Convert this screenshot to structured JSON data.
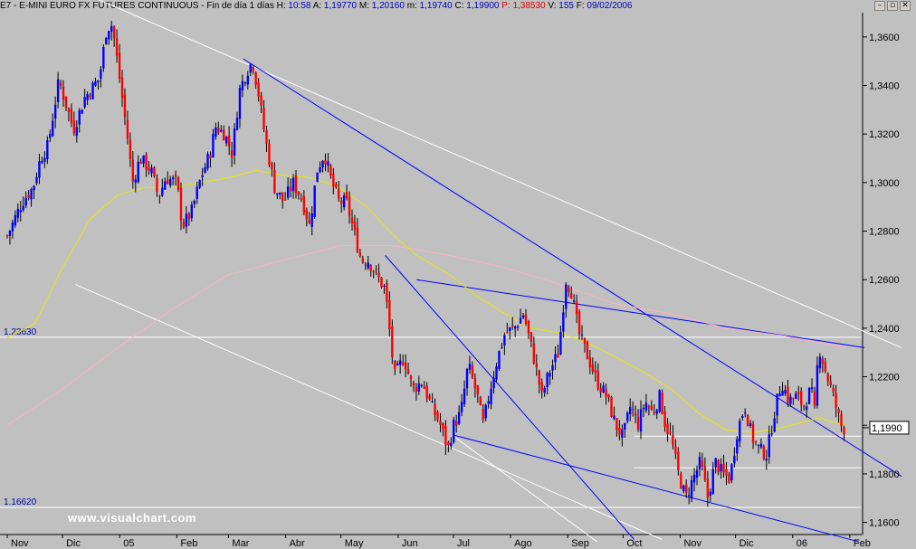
{
  "header": {
    "symbol": "E7",
    "name": "E-MINI EURO FX FUTURES CONTINUOUS",
    "timeframe": "Fin de día 1 días",
    "h_label": "H:",
    "h_value": "10:58",
    "a_label": "A:",
    "a_value": "1,19770",
    "m_label": "M:",
    "m_value": "1,20160",
    "mn_label": "m:",
    "mn_value": "1,19740",
    "c_label": "C:",
    "c_value": "1,19900",
    "p_label": "P:",
    "p_value": "1,38530",
    "v_label": "V:",
    "v_value": "155",
    "f_label": "F:",
    "f_value": "09/02/2006"
  },
  "window_buttons": {
    "minimize": "–",
    "restore": "▫",
    "close": "✕"
  },
  "watermark": "www.visualchart.com",
  "colors": {
    "background": "#c0c0c0",
    "up_candle": "#0000ff",
    "down_candle": "#ff0000",
    "ma_fast": "#e8e800",
    "ma_slow": "#ffb0c0",
    "trendline_blue": "#0000ff",
    "trendline_white": "#ffffff",
    "grid": "#ffffff"
  },
  "chart_data": {
    "type": "candlestick",
    "y_axis": {
      "min": 1.155,
      "max": 1.37,
      "ticks": [
        1.36,
        1.34,
        1.32,
        1.3,
        1.28,
        1.26,
        1.24,
        1.22,
        1.2,
        1.18,
        1.16
      ],
      "tick_labels": [
        "1,3600",
        "1,3400",
        "1,3200",
        "1,3000",
        "1,2800",
        "1,2600",
        "1,2400",
        "1,2200",
        "1,2000",
        "1,1800",
        "1,1600"
      ],
      "current_price": 1.199,
      "current_price_label": "1,1990"
    },
    "x_axis": {
      "labels": [
        "Nov",
        "Dic",
        "05",
        "Feb",
        "Mar",
        "Abr",
        "May",
        "Jun",
        "Jul",
        "Ago",
        "Sep",
        "Oct",
        "Nov",
        "Dic",
        "06",
        "Feb"
      ],
      "label_days": [
        0,
        30,
        61,
        92,
        120,
        151,
        181,
        212,
        242,
        273,
        304,
        334,
        365,
        395,
        426,
        457
      ]
    },
    "horizontal_levels": [
      {
        "value": 1.2363,
        "label": "1.23630"
      },
      {
        "value": 1.1662,
        "label": "1.16620"
      },
      {
        "value": 1.1955,
        "label": ""
      },
      {
        "value": 1.1825,
        "label": ""
      }
    ],
    "trendlines_blue": [
      {
        "from": [
          128,
          1.351
        ],
        "to": [
          485,
          1.179
        ]
      },
      {
        "from": [
          222,
          1.26
        ],
        "to": [
          465,
          1.232
        ]
      },
      {
        "from": [
          242,
          1.196
        ],
        "to": [
          462,
          1.152
        ]
      },
      {
        "from": [
          205,
          1.27
        ],
        "to": [
          340,
          1.153
        ]
      }
    ],
    "trendlines_white": [
      {
        "from": [
          40,
          1.3785
        ],
        "to": [
          485,
          1.232
        ]
      },
      {
        "from": [
          37,
          1.258
        ],
        "to": [
          355,
          1.153
        ]
      },
      {
        "from": [
          243,
          1.195
        ],
        "to": [
          320,
          1.152
        ]
      }
    ],
    "ohlc_path": [
      [
        0,
        1.278
      ],
      [
        8,
        1.292
      ],
      [
        14,
        1.298
      ],
      [
        18,
        1.31
      ],
      [
        22,
        1.315
      ],
      [
        28,
        1.342
      ],
      [
        32,
        1.332
      ],
      [
        36,
        1.322
      ],
      [
        42,
        1.335
      ],
      [
        50,
        1.343
      ],
      [
        54,
        1.364
      ],
      [
        57,
        1.365
      ],
      [
        60,
        1.348
      ],
      [
        65,
        1.32
      ],
      [
        68,
        1.3
      ],
      [
        72,
        1.31
      ],
      [
        78,
        1.305
      ],
      [
        82,
        1.294
      ],
      [
        86,
        1.302
      ],
      [
        92,
        1.3
      ],
      [
        95,
        1.282
      ],
      [
        100,
        1.288
      ],
      [
        105,
        1.302
      ],
      [
        110,
        1.312
      ],
      [
        113,
        1.323
      ],
      [
        118,
        1.32
      ],
      [
        122,
        1.312
      ],
      [
        126,
        1.338
      ],
      [
        130,
        1.346
      ],
      [
        133,
        1.35
      ],
      [
        136,
        1.338
      ],
      [
        140,
        1.318
      ],
      [
        145,
        1.298
      ],
      [
        150,
        1.292
      ],
      [
        155,
        1.3
      ],
      [
        160,
        1.293
      ],
      [
        164,
        1.282
      ],
      [
        168,
        1.305
      ],
      [
        172,
        1.312
      ],
      [
        176,
        1.3
      ],
      [
        180,
        1.292
      ],
      [
        184,
        1.292
      ],
      [
        188,
        1.28
      ],
      [
        192,
        1.268
      ],
      [
        196,
        1.268
      ],
      [
        200,
        1.262
      ],
      [
        205,
        1.256
      ],
      [
        210,
        1.22
      ],
      [
        215,
        1.228
      ],
      [
        220,
        1.215
      ],
      [
        225,
        1.218
      ],
      [
        230,
        1.208
      ],
      [
        235,
        1.2
      ],
      [
        239,
        1.19
      ],
      [
        242,
        1.2
      ],
      [
        246,
        1.205
      ],
      [
        250,
        1.225
      ],
      [
        255,
        1.212
      ],
      [
        258,
        1.2
      ],
      [
        262,
        1.215
      ],
      [
        266,
        1.228
      ],
      [
        270,
        1.238
      ],
      [
        275,
        1.24
      ],
      [
        280,
        1.246
      ],
      [
        285,
        1.23
      ],
      [
        290,
        1.212
      ],
      [
        294,
        1.222
      ],
      [
        299,
        1.23
      ],
      [
        303,
        1.26
      ],
      [
        306,
        1.255
      ],
      [
        310,
        1.238
      ],
      [
        315,
        1.228
      ],
      [
        320,
        1.218
      ],
      [
        325,
        1.212
      ],
      [
        330,
        1.2
      ],
      [
        334,
        1.195
      ],
      [
        338,
        1.208
      ],
      [
        342,
        1.2
      ],
      [
        346,
        1.21
      ],
      [
        350,
        1.205
      ],
      [
        354,
        1.212
      ],
      [
        357,
        1.2
      ],
      [
        360,
        1.195
      ],
      [
        364,
        1.18
      ],
      [
        368,
        1.17
      ],
      [
        372,
        1.178
      ],
      [
        376,
        1.185
      ],
      [
        380,
        1.17
      ],
      [
        384,
        1.185
      ],
      [
        388,
        1.18
      ],
      [
        392,
        1.178
      ],
      [
        396,
        1.198
      ],
      [
        400,
        1.208
      ],
      [
        404,
        1.195
      ],
      [
        408,
        1.19
      ],
      [
        412,
        1.188
      ],
      [
        416,
        1.205
      ],
      [
        420,
        1.218
      ],
      [
        424,
        1.21
      ],
      [
        428,
        1.212
      ],
      [
        432,
        1.208
      ],
      [
        436,
        1.215
      ],
      [
        438,
        1.205
      ],
      [
        440,
        1.233
      ],
      [
        444,
        1.222
      ],
      [
        448,
        1.212
      ],
      [
        452,
        1.2
      ],
      [
        455,
        1.198
      ]
    ],
    "ma_fast": [
      [
        0,
        1.236
      ],
      [
        15,
        1.242
      ],
      [
        30,
        1.265
      ],
      [
        45,
        1.285
      ],
      [
        60,
        1.295
      ],
      [
        75,
        1.298
      ],
      [
        90,
        1.298
      ],
      [
        105,
        1.3
      ],
      [
        120,
        1.302
      ],
      [
        135,
        1.305
      ],
      [
        150,
        1.303
      ],
      [
        165,
        1.302
      ],
      [
        180,
        1.298
      ],
      [
        195,
        1.29
      ],
      [
        210,
        1.278
      ],
      [
        222,
        1.27
      ],
      [
        240,
        1.262
      ],
      [
        255,
        1.253
      ],
      [
        270,
        1.246
      ],
      [
        285,
        1.24
      ],
      [
        300,
        1.238
      ],
      [
        315,
        1.234
      ],
      [
        330,
        1.228
      ],
      [
        345,
        1.222
      ],
      [
        360,
        1.215
      ],
      [
        375,
        1.205
      ],
      [
        390,
        1.198
      ],
      [
        405,
        1.197
      ],
      [
        420,
        1.199
      ],
      [
        440,
        1.203
      ],
      [
        455,
        1.2
      ]
    ],
    "ma_slow": [
      [
        0,
        1.2
      ],
      [
        30,
        1.215
      ],
      [
        60,
        1.232
      ],
      [
        90,
        1.248
      ],
      [
        120,
        1.262
      ],
      [
        150,
        1.268
      ],
      [
        180,
        1.274
      ],
      [
        210,
        1.274
      ],
      [
        240,
        1.27
      ],
      [
        270,
        1.265
      ],
      [
        300,
        1.258
      ],
      [
        330,
        1.25
      ],
      [
        360,
        1.246
      ],
      [
        390,
        1.24
      ],
      [
        420,
        1.237
      ],
      [
        440,
        1.234
      ],
      [
        455,
        1.232
      ]
    ]
  }
}
